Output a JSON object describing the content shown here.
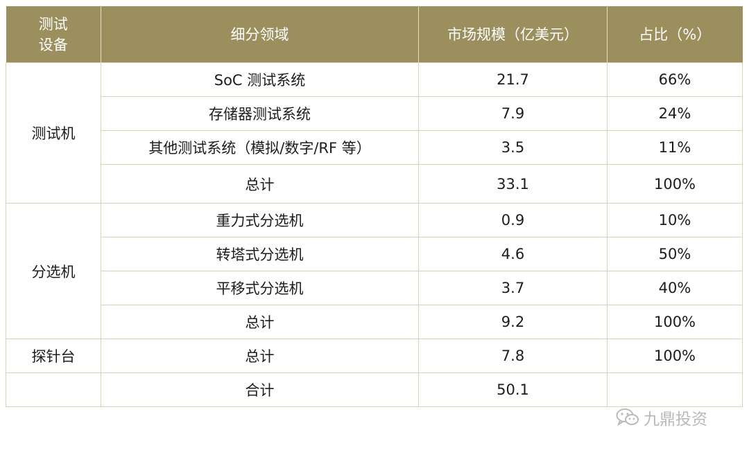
{
  "header": {
    "equipment": "测试设备",
    "segment": "细分领域",
    "market_size": "市场规模（亿美元）",
    "share": "占比（%）"
  },
  "groups": [
    {
      "name": "测试机",
      "rows": [
        {
          "segment": "SoC 测试系统",
          "size": "21.7",
          "share": "66%"
        },
        {
          "segment": "存储器测试系统",
          "size": "7.9",
          "share": "24%"
        },
        {
          "segment": "其他测试系统（模拟/数字/RF 等）",
          "size": "3.5",
          "share": "11%"
        },
        {
          "segment": "总计",
          "size": "33.1",
          "share": "100%"
        }
      ]
    },
    {
      "name": "分选机",
      "rows": [
        {
          "segment": "重力式分选机",
          "size": "0.9",
          "share": "10%"
        },
        {
          "segment": "转塔式分选机",
          "size": "4.6",
          "share": "50%"
        },
        {
          "segment": "平移式分选机",
          "size": "3.7",
          "share": "40%"
        },
        {
          "segment": "总计",
          "size": "9.2",
          "share": "100%"
        }
      ]
    },
    {
      "name": "探针台",
      "rows": [
        {
          "segment": "总计",
          "size": "7.8",
          "share": "100%"
        }
      ]
    }
  ],
  "grand_total": {
    "equipment": "",
    "segment": "合计",
    "size": "50.1",
    "share": ""
  },
  "watermark": {
    "icon": "wechat-icon",
    "text": "九鼎投资"
  },
  "colors": {
    "header_bg": "#9b8f5e",
    "border": "#d8d2b4",
    "watermark": "#b9b9b9"
  }
}
